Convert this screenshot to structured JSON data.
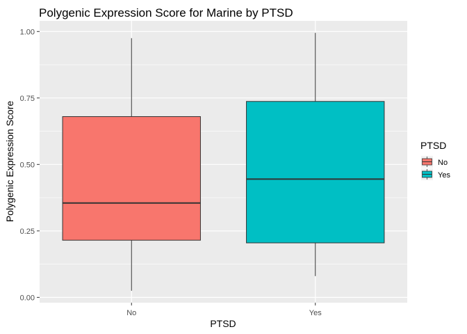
{
  "chart_data": {
    "type": "boxplot",
    "title": "Polygenic Expression Score for Marine by PTSD",
    "xlabel": "PTSD",
    "ylabel": "Polygenic Expression Score",
    "ylim": [
      -0.02,
      1.04
    ],
    "yticks": [
      0.0,
      0.25,
      0.5,
      0.75,
      1.0
    ],
    "ytick_labels": [
      "0.00",
      "0.25",
      "0.50",
      "0.75",
      "1.00"
    ],
    "categories": [
      "No",
      "Yes"
    ],
    "boxes": [
      {
        "category": "No",
        "min": 0.025,
        "q1": 0.215,
        "median": 0.355,
        "q3": 0.68,
        "max": 0.975,
        "fill": "#F8766D"
      },
      {
        "category": "Yes",
        "min": 0.08,
        "q1": 0.205,
        "median": 0.445,
        "q3": 0.737,
        "max": 0.995,
        "fill": "#00BFC4"
      }
    ],
    "legend": {
      "title": "PTSD",
      "position": "right",
      "entries": [
        {
          "label": "No",
          "color": "#F8766D"
        },
        {
          "label": "Yes",
          "color": "#00BFC4"
        }
      ]
    },
    "grid": true,
    "panel_background": "#EBEBEB",
    "grid_color": "#FFFFFF"
  }
}
